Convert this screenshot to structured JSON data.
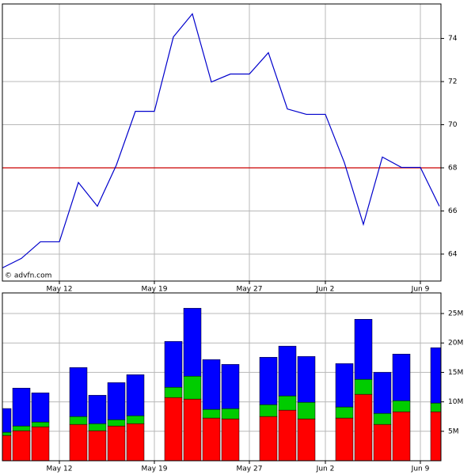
{
  "chart_data": [
    {
      "type": "line",
      "categories": [
        null,
        null,
        null,
        "May 12",
        null,
        null,
        null,
        null,
        "May 19",
        null,
        null,
        null,
        null,
        "May 27",
        null,
        null,
        null,
        "Jun 2",
        null,
        null,
        null,
        null,
        "Jun 9",
        null
      ],
      "values": [
        63.36,
        63.8,
        64.57,
        64.57,
        67.32,
        66.22,
        68.13,
        70.62,
        70.62,
        74.07,
        75.14,
        71.98,
        72.35,
        72.35,
        73.34,
        70.73,
        70.48,
        70.48,
        68.24,
        65.38,
        68.5,
        68.02,
        68.02,
        66.22
      ],
      "color": "#0000cc",
      "hline": 68,
      "hline_color": "#cc0000",
      "ylim": [
        62.75,
        75.6
      ],
      "yticks": [
        64,
        66,
        68,
        70,
        72,
        74
      ],
      "grid": true,
      "watermark": "© advfn.com"
    },
    {
      "type": "bar",
      "stacked": true,
      "categories": [
        null,
        null,
        null,
        "May 12",
        null,
        null,
        null,
        null,
        "May 19",
        null,
        null,
        null,
        null,
        "May 27",
        null,
        null,
        null,
        "Jun 2",
        null,
        null,
        null,
        null,
        "Jun 9",
        null
      ],
      "series": [
        {
          "color": "#ff0000",
          "values": [
            4.3,
            5.1,
            5.77,
            null,
            6.17,
            5.1,
            5.9,
            6.3,
            null,
            10.74,
            10.47,
            7.25,
            7.11,
            null,
            7.52,
            8.59,
            7.11,
            null,
            7.25,
            11.28,
            6.17,
            8.32,
            null,
            8.32
          ]
        },
        {
          "color": "#00cc00",
          "values": [
            0.54,
            0.8,
            0.8,
            null,
            1.34,
            1.2,
            1.07,
            1.34,
            null,
            1.74,
            3.89,
            1.48,
            1.74,
            null,
            2.01,
            2.42,
            2.82,
            null,
            1.88,
            2.55,
            1.88,
            1.88,
            null,
            1.48
          ]
        },
        {
          "color": "#0000ff",
          "values": [
            4.03,
            6.44,
            4.97,
            null,
            8.32,
            4.83,
            6.3,
            6.98,
            null,
            7.79,
            11.54,
            8.46,
            7.52,
            null,
            8.05,
            8.46,
            7.79,
            null,
            7.38,
            10.2,
            6.98,
            7.92,
            null,
            9.4
          ]
        }
      ],
      "ylim": [
        0,
        28.5
      ],
      "yticks": [
        {
          "value": 5,
          "label": "5M"
        },
        {
          "value": 10,
          "label": "10M"
        },
        {
          "value": 15,
          "label": "15M"
        },
        {
          "value": 20,
          "label": "20M"
        },
        {
          "value": 25,
          "label": "25M"
        }
      ],
      "grid": true
    }
  ]
}
